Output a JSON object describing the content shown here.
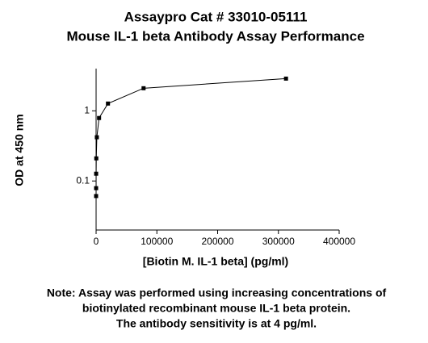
{
  "chart_data": {
    "type": "line",
    "title": "Assaypro Cat # 33010-05111",
    "subtitle": "Mouse IL-1 beta Antibody Assay Performance",
    "x_label": "[Biotin M. IL-1 beta] (pg/ml)",
    "y_label": "OD at 450 nm",
    "note": [
      "Note: Assay was performed using increasing concentrations of",
      "biotinylated recombinant mouse IL-1 beta protein.",
      "The antibody sensitivity is at 4 pg/ml."
    ],
    "x": [
      312500,
      78125,
      19531,
      4883,
      1221,
      305,
      76,
      19,
      5
    ],
    "values": [
      2.88,
      2.1,
      1.27,
      0.79,
      0.42,
      0.21,
      0.127,
      0.079,
      0.061
    ],
    "color": "#000000",
    "xlim": [
      0,
      400000
    ],
    "xticks": [
      0,
      100000,
      200000,
      300000,
      400000
    ],
    "ylim": [
      0.02,
      4
    ],
    "yticks": [
      0.1,
      1
    ],
    "y_scale": "log"
  }
}
